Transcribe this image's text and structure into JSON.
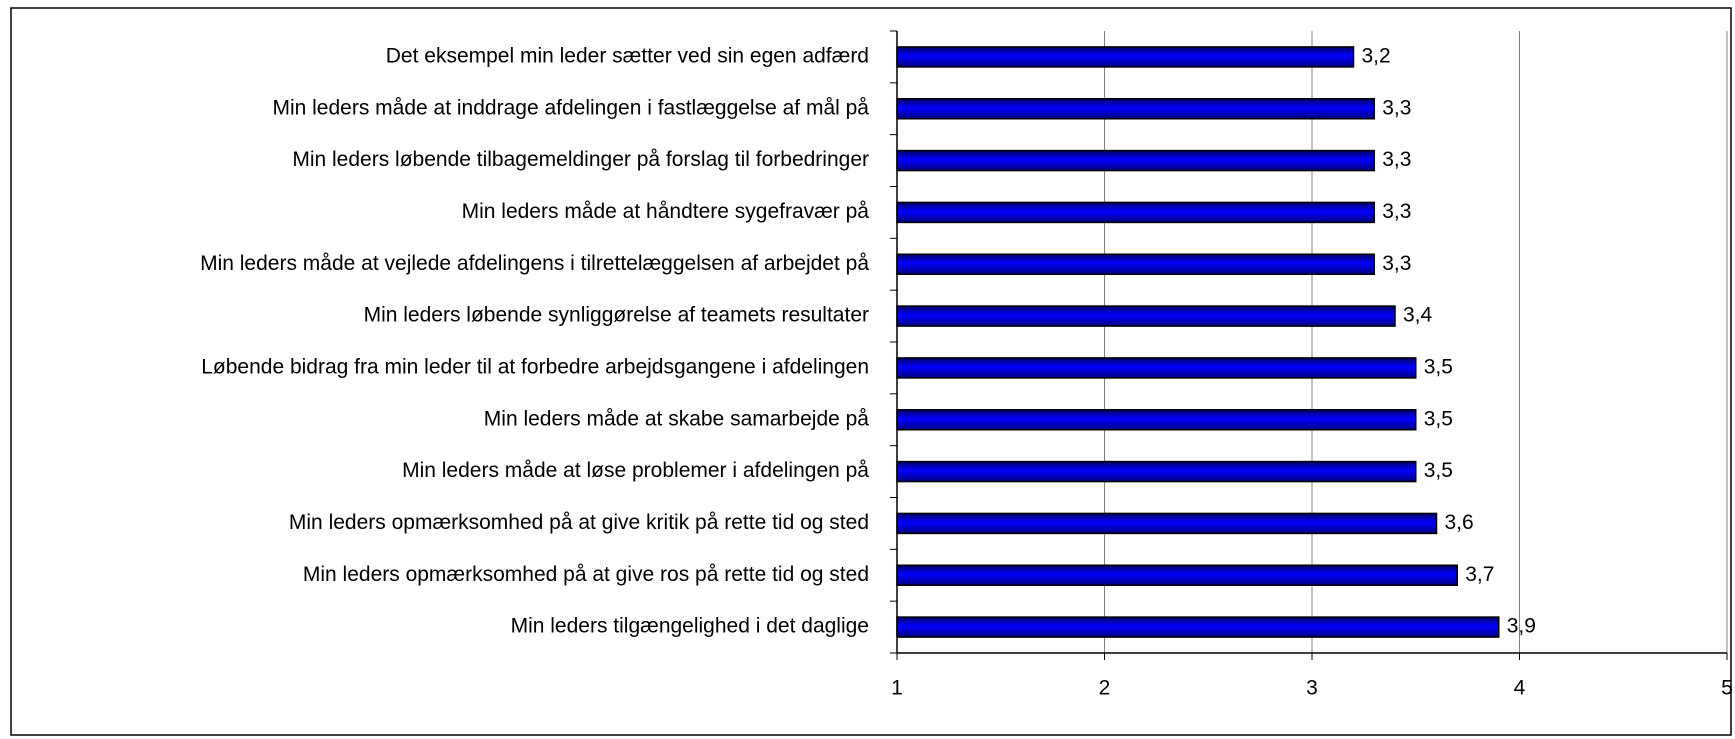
{
  "chart_data": {
    "type": "bar",
    "orientation": "horizontal",
    "categories": [
      "Det eksempel min leder sætter ved sin egen adfærd",
      "Min leders måde at inddrage afdelingen i fastlæggelse af mål på",
      "Min leders løbende tilbagemeldinger på forslag til forbedringer",
      "Min leders måde at håndtere sygefravær på",
      "Min leders måde at vejlede afdelingens i tilrettelæggelsen af arbejdet på",
      "Min leders løbende synliggørelse af teamets resultater",
      "Løbende bidrag fra min leder til at forbedre arbejdsgangene i afdelingen",
      "Min leders måde at skabe samarbejde på",
      "Min leders måde at løse problemer i afdelingen på",
      "Min leders opmærksomhed på at give kritik på rette tid og sted",
      "Min leders opmærksomhed på at give ros på rette tid og sted",
      "Min leders tilgængelighed i det daglige"
    ],
    "values": [
      3.2,
      3.3,
      3.3,
      3.3,
      3.3,
      3.4,
      3.5,
      3.5,
      3.5,
      3.6,
      3.7,
      3.9
    ],
    "value_labels": [
      "3,2",
      "3,3",
      "3,3",
      "3,3",
      "3,3",
      "3,4",
      "3,5",
      "3,5",
      "3,5",
      "3,6",
      "3,7",
      "3,9"
    ],
    "color": "#0000cc",
    "xlim": [
      1,
      5
    ],
    "xticks": [
      1,
      2,
      3,
      4,
      5
    ],
    "grid": true
  }
}
